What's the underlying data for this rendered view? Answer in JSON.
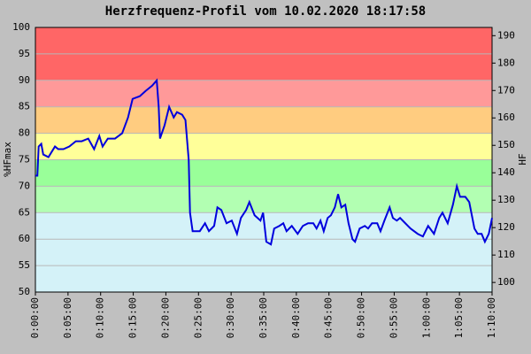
{
  "chart_data": {
    "type": "line",
    "title": "Herzfrequenz-Profil vom 10.02.2020 18:17:58",
    "ylabel": "%HFmax",
    "y2label": "HF",
    "xlim": [
      0,
      70
    ],
    "xticks": [
      {
        "value": 0,
        "label": "0:00:00"
      },
      {
        "value": 5,
        "label": "0:05:00"
      },
      {
        "value": 10,
        "label": "0:10:00"
      },
      {
        "value": 15,
        "label": "0:15:00"
      },
      {
        "value": 20,
        "label": "0:20:00"
      },
      {
        "value": 25,
        "label": "0:25:00"
      },
      {
        "value": 30,
        "label": "0:30:00"
      },
      {
        "value": 35,
        "label": "0:35:00"
      },
      {
        "value": 40,
        "label": "0:40:00"
      },
      {
        "value": 45,
        "label": "0:45:00"
      },
      {
        "value": 50,
        "label": "0:50:00"
      },
      {
        "value": 55,
        "label": "0:55:00"
      },
      {
        "value": 60,
        "label": "1:00:00"
      },
      {
        "value": 65,
        "label": "1:05:00"
      },
      {
        "value": 70,
        "label": "1:10:00"
      }
    ],
    "ylim": [
      50,
      100
    ],
    "yticks": [
      50,
      55,
      60,
      65,
      70,
      75,
      80,
      85,
      90,
      95,
      100
    ],
    "y2lim": [
      96.5,
      193
    ],
    "y2ticks": [
      100,
      110,
      120,
      130,
      140,
      150,
      160,
      170,
      180,
      190
    ],
    "grid": true,
    "zones": [
      {
        "from": 50,
        "to": 65,
        "color": "#d4f2f8"
      },
      {
        "from": 65,
        "to": 70,
        "color": "#b2ffb2"
      },
      {
        "from": 70,
        "to": 75,
        "color": "#99ff99"
      },
      {
        "from": 75,
        "to": 80,
        "color": "#ffff99"
      },
      {
        "from": 80,
        "to": 85,
        "color": "#ffcc80"
      },
      {
        "from": 85,
        "to": 90,
        "color": "#ff9999"
      },
      {
        "from": 90,
        "to": 100,
        "color": "#ff6666"
      }
    ],
    "series": [
      {
        "color": "#0000dd",
        "x": [
          0,
          0.3,
          0.5,
          0.9,
          1.2,
          2.0,
          3.0,
          3.5,
          4.3,
          5.2,
          6.2,
          7.1,
          8.1,
          9.0,
          9.8,
          10.3,
          11.1,
          12.2,
          13.3,
          14.2,
          14.9,
          16.0,
          16.9,
          17.9,
          18.6,
          18.9,
          19.1,
          19.8,
          20.5,
          21.2,
          21.7,
          22.5,
          23.0,
          23.5,
          23.7,
          24.1,
          25.2,
          26.0,
          26.6,
          27.4,
          27.9,
          28.5,
          29.3,
          30.1,
          30.9,
          31.5,
          32.3,
          32.8,
          33.6,
          34.5,
          34.9,
          35.4,
          36.1,
          36.6,
          37.4,
          38.0,
          38.5,
          39.3,
          40.2,
          41.0,
          41.8,
          42.6,
          43.1,
          43.7,
          44.2,
          44.8,
          45.3,
          45.9,
          46.4,
          46.9,
          47.5,
          48.0,
          48.6,
          49.0,
          49.7,
          50.5,
          51.0,
          51.6,
          52.4,
          52.9,
          53.5,
          54.3,
          54.8,
          55.4,
          55.9,
          56.7,
          57.5,
          58.6,
          59.4,
          60.2,
          61.1,
          61.9,
          62.4,
          63.2,
          64.0,
          64.6,
          65.1,
          65.9,
          66.5,
          67.3,
          67.8,
          68.4,
          68.9,
          69.5,
          70.0
        ],
        "values": [
          72,
          72,
          77.5,
          78,
          76,
          75.5,
          77.5,
          77,
          77,
          77.5,
          78.5,
          78.5,
          79,
          77,
          79.5,
          77.5,
          79,
          79,
          80,
          83,
          86.5,
          87,
          88,
          89,
          90,
          85,
          79,
          81.5,
          85,
          83,
          84,
          83.5,
          82.5,
          75,
          65,
          61.5,
          61.5,
          63,
          61.5,
          62.5,
          66,
          65.5,
          63,
          63.5,
          61,
          64,
          65.5,
          67,
          64.5,
          63.5,
          65,
          59.5,
          59,
          62,
          62.5,
          63,
          61.5,
          62.5,
          61,
          62.5,
          63,
          63,
          62,
          63.5,
          61.5,
          64,
          64.5,
          66,
          68.5,
          66,
          66.5,
          63,
          60,
          59.5,
          62,
          62.5,
          62,
          63,
          63,
          61.5,
          63.5,
          66,
          64,
          63.5,
          64,
          63,
          62,
          61,
          60.5,
          62.5,
          61,
          64,
          65,
          63,
          66.5,
          70,
          68,
          68,
          67,
          62,
          61,
          61,
          59.5,
          61,
          64
        ]
      }
    ]
  }
}
